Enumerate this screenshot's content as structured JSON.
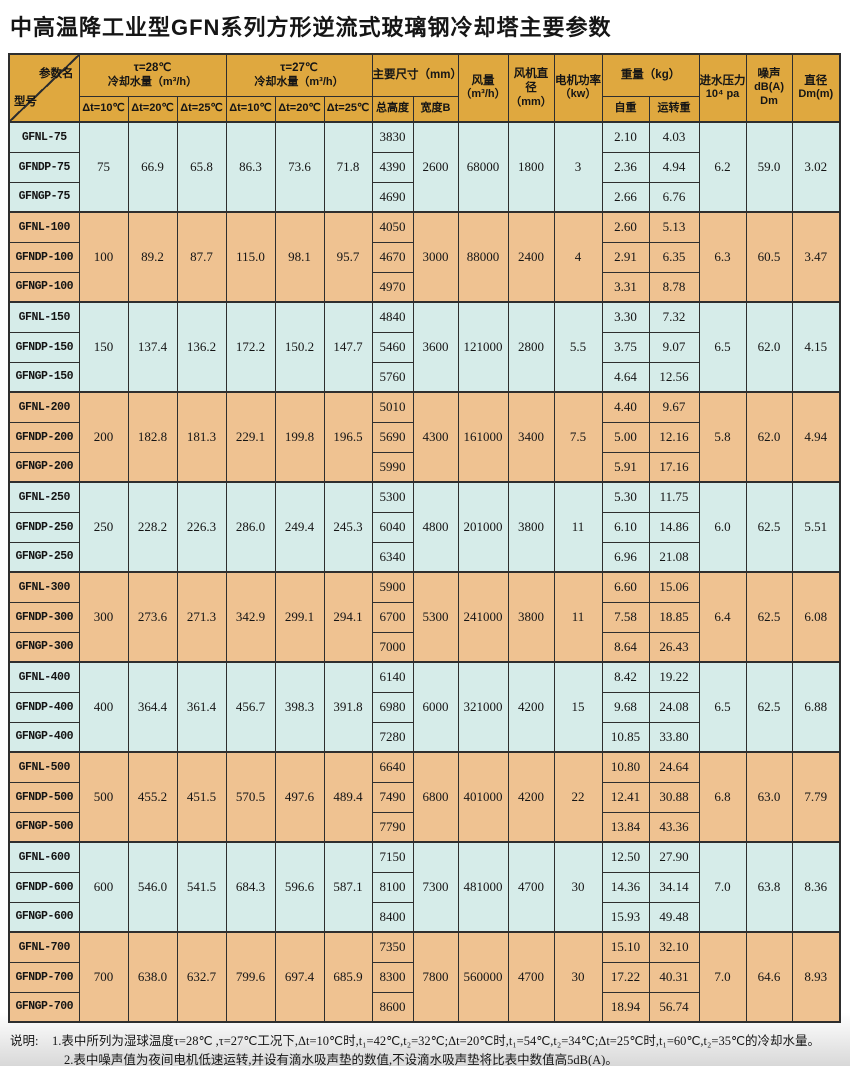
{
  "page_title": "中高温降工业型GFN系列方形逆流式玻璃钢冷却塔主要参数",
  "colors": {
    "header_bg": "#DFA83F",
    "group_blue": "#D6ECE9",
    "group_orange": "#EFC291",
    "border": "#2E2E2E"
  },
  "table": {
    "header": {
      "corner": {
        "top": "参数名",
        "bottom": "型号"
      },
      "tau28": {
        "line1": "τ=28℃",
        "line2": "冷却水量（m³/h）"
      },
      "tau27": {
        "line1": "τ=27℃",
        "line2": "冷却水量（m³/h）"
      },
      "dims_title": "主要尺寸（mm）",
      "weight_title": "重量（kg）",
      "subs": {
        "dt10": "Δt=10℃",
        "dt20": "Δt=20℃",
        "dt25": "Δt=25℃",
        "height": "总高度",
        "width_b": "宽度B",
        "self_weight": "自重",
        "run_weight": "运转重"
      },
      "airflow": {
        "line1": "风量",
        "line2": "（m³/h）"
      },
      "fan_dia": {
        "line1": "风机直径",
        "line2": "（mm）"
      },
      "motor": {
        "line1": "电机功率",
        "line2": "（kw）"
      },
      "pressure": {
        "line1": "进水压力",
        "line2": "10⁴ pa"
      },
      "noise": {
        "line1": "噪声",
        "line2": "dB(A) Dm"
      },
      "diameter": {
        "line1": "直径",
        "line2": "Dm(m)"
      }
    },
    "groups": [
      {
        "models": [
          "GFNL-75",
          "GFNDP-75",
          "GFNGP-75"
        ],
        "tau28": [
          "75",
          "66.9",
          "65.8"
        ],
        "tau27": [
          "86.3",
          "73.6",
          "71.8"
        ],
        "heights": [
          "3830",
          "4390",
          "4690"
        ],
        "width_b": "2600",
        "airflow": "68000",
        "fan_dia": "1800",
        "motor": "3",
        "self_w": [
          "2.10",
          "2.36",
          "2.66"
        ],
        "run_w": [
          "4.03",
          "4.94",
          "6.76"
        ],
        "pressure": "6.2",
        "noise": "59.0",
        "diameter": "3.02"
      },
      {
        "models": [
          "GFNL-100",
          "GFNDP-100",
          "GFNGP-100"
        ],
        "tau28": [
          "100",
          "89.2",
          "87.7"
        ],
        "tau27": [
          "115.0",
          "98.1",
          "95.7"
        ],
        "heights": [
          "4050",
          "4670",
          "4970"
        ],
        "width_b": "3000",
        "airflow": "88000",
        "fan_dia": "2400",
        "motor": "4",
        "self_w": [
          "2.60",
          "2.91",
          "3.31"
        ],
        "run_w": [
          "5.13",
          "6.35",
          "8.78"
        ],
        "pressure": "6.3",
        "noise": "60.5",
        "diameter": "3.47"
      },
      {
        "models": [
          "GFNL-150",
          "GFNDP-150",
          "GFNGP-150"
        ],
        "tau28": [
          "150",
          "137.4",
          "136.2"
        ],
        "tau27": [
          "172.2",
          "150.2",
          "147.7"
        ],
        "heights": [
          "4840",
          "5460",
          "5760"
        ],
        "width_b": "3600",
        "airflow": "121000",
        "fan_dia": "2800",
        "motor": "5.5",
        "self_w": [
          "3.30",
          "3.75",
          "4.64"
        ],
        "run_w": [
          "7.32",
          "9.07",
          "12.56"
        ],
        "pressure": "6.5",
        "noise": "62.0",
        "diameter": "4.15"
      },
      {
        "models": [
          "GFNL-200",
          "GFNDP-200",
          "GFNGP-200"
        ],
        "tau28": [
          "200",
          "182.8",
          "181.3"
        ],
        "tau27": [
          "229.1",
          "199.8",
          "196.5"
        ],
        "heights": [
          "5010",
          "5690",
          "5990"
        ],
        "width_b": "4300",
        "airflow": "161000",
        "fan_dia": "3400",
        "motor": "7.5",
        "self_w": [
          "4.40",
          "5.00",
          "5.91"
        ],
        "run_w": [
          "9.67",
          "12.16",
          "17.16"
        ],
        "pressure": "5.8",
        "noise": "62.0",
        "diameter": "4.94"
      },
      {
        "models": [
          "GFNL-250",
          "GFNDP-250",
          "GFNGP-250"
        ],
        "tau28": [
          "250",
          "228.2",
          "226.3"
        ],
        "tau27": [
          "286.0",
          "249.4",
          "245.3"
        ],
        "heights": [
          "5300",
          "6040",
          "6340"
        ],
        "width_b": "4800",
        "airflow": "201000",
        "fan_dia": "3800",
        "motor": "11",
        "self_w": [
          "5.30",
          "6.10",
          "6.96"
        ],
        "run_w": [
          "11.75",
          "14.86",
          "21.08"
        ],
        "pressure": "6.0",
        "noise": "62.5",
        "diameter": "5.51"
      },
      {
        "models": [
          "GFNL-300",
          "GFNDP-300",
          "GFNGP-300"
        ],
        "tau28": [
          "300",
          "273.6",
          "271.3"
        ],
        "tau27": [
          "342.9",
          "299.1",
          "294.1"
        ],
        "heights": [
          "5900",
          "6700",
          "7000"
        ],
        "width_b": "5300",
        "airflow": "241000",
        "fan_dia": "3800",
        "motor": "11",
        "self_w": [
          "6.60",
          "7.58",
          "8.64"
        ],
        "run_w": [
          "15.06",
          "18.85",
          "26.43"
        ],
        "pressure": "6.4",
        "noise": "62.5",
        "diameter": "6.08"
      },
      {
        "models": [
          "GFNL-400",
          "GFNDP-400",
          "GFNGP-400"
        ],
        "tau28": [
          "400",
          "364.4",
          "361.4"
        ],
        "tau27": [
          "456.7",
          "398.3",
          "391.8"
        ],
        "heights": [
          "6140",
          "6980",
          "7280"
        ],
        "width_b": "6000",
        "airflow": "321000",
        "fan_dia": "4200",
        "motor": "15",
        "self_w": [
          "8.42",
          "9.68",
          "10.85"
        ],
        "run_w": [
          "19.22",
          "24.08",
          "33.80"
        ],
        "pressure": "6.5",
        "noise": "62.5",
        "diameter": "6.88"
      },
      {
        "models": [
          "GFNL-500",
          "GFNDP-500",
          "GFNGP-500"
        ],
        "tau28": [
          "500",
          "455.2",
          "451.5"
        ],
        "tau27": [
          "570.5",
          "497.6",
          "489.4"
        ],
        "heights": [
          "6640",
          "7490",
          "7790"
        ],
        "width_b": "6800",
        "airflow": "401000",
        "fan_dia": "4200",
        "motor": "22",
        "self_w": [
          "10.80",
          "12.41",
          "13.84"
        ],
        "run_w": [
          "24.64",
          "30.88",
          "43.36"
        ],
        "pressure": "6.8",
        "noise": "63.0",
        "diameter": "7.79"
      },
      {
        "models": [
          "GFNL-600",
          "GFNDP-600",
          "GFNGP-600"
        ],
        "tau28": [
          "600",
          "546.0",
          "541.5"
        ],
        "tau27": [
          "684.3",
          "596.6",
          "587.1"
        ],
        "heights": [
          "7150",
          "8100",
          "8400"
        ],
        "width_b": "7300",
        "airflow": "481000",
        "fan_dia": "4700",
        "motor": "30",
        "self_w": [
          "12.50",
          "14.36",
          "15.93"
        ],
        "run_w": [
          "27.90",
          "34.14",
          "49.48"
        ],
        "pressure": "7.0",
        "noise": "63.8",
        "diameter": "8.36"
      },
      {
        "models": [
          "GFNL-700",
          "GFNDP-700",
          "GFNGP-700"
        ],
        "tau28": [
          "700",
          "638.0",
          "632.7"
        ],
        "tau27": [
          "799.6",
          "697.4",
          "685.9"
        ],
        "heights": [
          "7350",
          "8300",
          "8600"
        ],
        "width_b": "7800",
        "airflow": "560000",
        "fan_dia": "4700",
        "motor": "30",
        "self_w": [
          "15.10",
          "17.22",
          "18.94"
        ],
        "run_w": [
          "32.10",
          "40.31",
          "56.74"
        ],
        "pressure": "7.0",
        "noise": "64.6",
        "diameter": "8.93"
      }
    ]
  },
  "notes": {
    "label": "说明:",
    "line1": "1.表中所列为湿球温度τ=28℃ ,τ=27℃工况下,Δt=10℃时,t₁=42℃,t₂=32℃;Δt=20℃时,t₁=54℃,t₂=34℃;Δt=25℃时,t₁=60℃,t₂=35℃的冷却水量。",
    "line2": "2.表中噪声值为夜间电机低速运转,并设有滴水吸声垫的数值,不设滴水吸声垫将比表中数值高5dB(A)。"
  }
}
